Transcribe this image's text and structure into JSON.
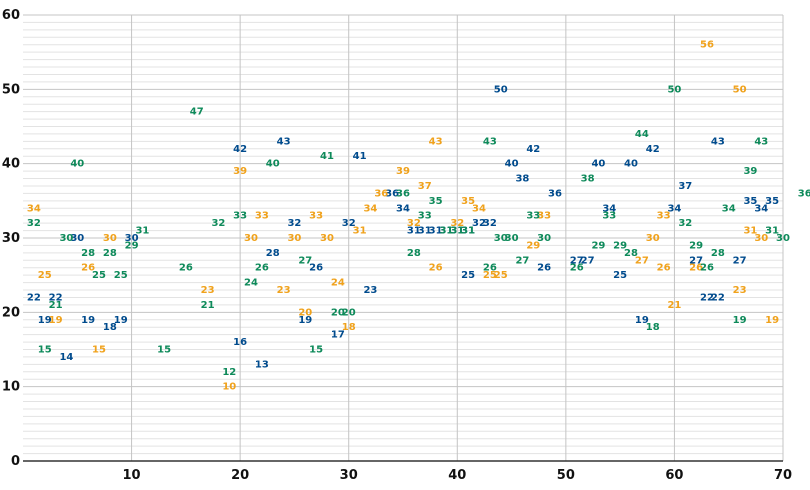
{
  "chart_data": {
    "type": "scatter",
    "title": "",
    "xlabel": "",
    "ylabel": "",
    "xlim": [
      0,
      70
    ],
    "ylim": [
      0,
      60
    ],
    "x_ticks": [
      10,
      20,
      30,
      40,
      50,
      60,
      70
    ],
    "y_ticks": [
      0,
      10,
      20,
      30,
      40,
      50,
      60
    ],
    "grid": true,
    "legend": "none",
    "series": [
      {
        "color": "#004b8d",
        "points": [
          [
            1,
            22
          ],
          [
            2,
            19
          ],
          [
            3,
            22
          ],
          [
            4,
            14
          ],
          [
            5,
            30
          ],
          [
            6,
            19
          ],
          [
            8,
            18
          ],
          [
            9,
            19
          ],
          [
            10,
            30
          ],
          [
            20,
            42
          ],
          [
            20,
            16
          ],
          [
            22,
            13
          ],
          [
            23,
            28
          ],
          [
            24,
            43
          ],
          [
            25,
            32
          ],
          [
            26,
            19
          ],
          [
            27,
            26
          ],
          [
            29,
            17
          ],
          [
            30,
            32
          ],
          [
            31,
            41
          ],
          [
            32,
            23
          ],
          [
            34,
            36
          ],
          [
            35,
            34
          ],
          [
            36,
            31
          ],
          [
            37,
            31
          ],
          [
            38,
            31
          ],
          [
            39,
            31
          ],
          [
            40,
            31
          ],
          [
            41,
            31
          ],
          [
            41,
            25
          ],
          [
            42,
            32
          ],
          [
            43,
            32
          ],
          [
            44,
            50
          ],
          [
            45,
            40
          ],
          [
            46,
            38
          ],
          [
            47,
            42
          ],
          [
            48,
            26
          ],
          [
            49,
            36
          ],
          [
            51,
            27
          ],
          [
            52,
            27
          ],
          [
            53,
            40
          ],
          [
            54,
            34
          ],
          [
            55,
            25
          ],
          [
            56,
            40
          ],
          [
            57,
            19
          ],
          [
            58,
            42
          ],
          [
            60,
            34
          ],
          [
            61,
            37
          ],
          [
            62,
            27
          ],
          [
            63,
            22
          ],
          [
            64,
            22
          ],
          [
            64,
            43
          ],
          [
            66,
            27
          ],
          [
            67,
            35
          ],
          [
            68,
            34
          ],
          [
            69,
            35
          ]
        ]
      },
      {
        "color": "#f0a21c",
        "points": [
          [
            1,
            34
          ],
          [
            2,
            25
          ],
          [
            3,
            19
          ],
          [
            6,
            26
          ],
          [
            7,
            15
          ],
          [
            8,
            30
          ],
          [
            17,
            23
          ],
          [
            19,
            10
          ],
          [
            20,
            39
          ],
          [
            21,
            30
          ],
          [
            22,
            33
          ],
          [
            24,
            23
          ],
          [
            25,
            30
          ],
          [
            26,
            20
          ],
          [
            27,
            33
          ],
          [
            28,
            30
          ],
          [
            29,
            24
          ],
          [
            30,
            18
          ],
          [
            31,
            31
          ],
          [
            32,
            34
          ],
          [
            33,
            36
          ],
          [
            35,
            39
          ],
          [
            36,
            32
          ],
          [
            37,
            37
          ],
          [
            38,
            43
          ],
          [
            38,
            26
          ],
          [
            40,
            32
          ],
          [
            41,
            35
          ],
          [
            42,
            34
          ],
          [
            43,
            25
          ],
          [
            44,
            25
          ],
          [
            47,
            29
          ],
          [
            48,
            33
          ],
          [
            57,
            27
          ],
          [
            58,
            30
          ],
          [
            59,
            26
          ],
          [
            59,
            33
          ],
          [
            60,
            21
          ],
          [
            62,
            26
          ],
          [
            63,
            56
          ],
          [
            66,
            23
          ],
          [
            66,
            50
          ],
          [
            67,
            31
          ],
          [
            68,
            30
          ],
          [
            69,
            19
          ]
        ]
      },
      {
        "color": "#0e8a5a",
        "points": [
          [
            1,
            32
          ],
          [
            2,
            15
          ],
          [
            3,
            21
          ],
          [
            4,
            30
          ],
          [
            5,
            40
          ],
          [
            6,
            28
          ],
          [
            7,
            25
          ],
          [
            8,
            28
          ],
          [
            9,
            25
          ],
          [
            10,
            29
          ],
          [
            11,
            31
          ],
          [
            13,
            15
          ],
          [
            15,
            26
          ],
          [
            16,
            47
          ],
          [
            17,
            21
          ],
          [
            18,
            32
          ],
          [
            19,
            12
          ],
          [
            20,
            33
          ],
          [
            21,
            24
          ],
          [
            22,
            26
          ],
          [
            23,
            40
          ],
          [
            26,
            27
          ],
          [
            27,
            15
          ],
          [
            28,
            41
          ],
          [
            29,
            20
          ],
          [
            30,
            20
          ],
          [
            35,
            36
          ],
          [
            36,
            28
          ],
          [
            37,
            33
          ],
          [
            38,
            35
          ],
          [
            39,
            31
          ],
          [
            40,
            31
          ],
          [
            41,
            31
          ],
          [
            43,
            43
          ],
          [
            43,
            26
          ],
          [
            44,
            30
          ],
          [
            45,
            30
          ],
          [
            46,
            27
          ],
          [
            47,
            33
          ],
          [
            48,
            30
          ],
          [
            51,
            26
          ],
          [
            52,
            38
          ],
          [
            53,
            29
          ],
          [
            54,
            33
          ],
          [
            55,
            29
          ],
          [
            56,
            28
          ],
          [
            57,
            44
          ],
          [
            58,
            18
          ],
          [
            60,
            50
          ],
          [
            61,
            32
          ],
          [
            62,
            29
          ],
          [
            63,
            26
          ],
          [
            64,
            28
          ],
          [
            65,
            34
          ],
          [
            66,
            19
          ],
          [
            67,
            39
          ],
          [
            68,
            43
          ],
          [
            69,
            31
          ],
          [
            70,
            30
          ],
          [
            72,
            36
          ]
        ]
      }
    ]
  }
}
